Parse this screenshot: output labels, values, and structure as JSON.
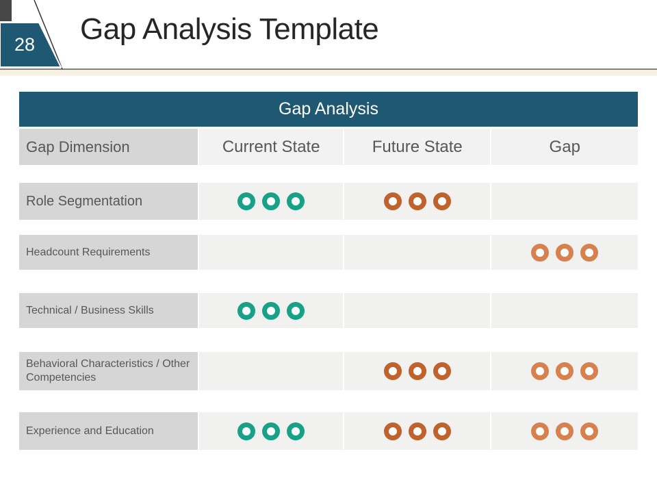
{
  "slide": {
    "page_number": "28",
    "title": "Gap Analysis Template"
  },
  "table": {
    "title": "Gap Analysis",
    "columns": [
      "Gap Dimension",
      "Current State",
      "Future State",
      "Gap"
    ],
    "rows": [
      {
        "label": "Role Segmentation",
        "current": {
          "count": 3,
          "color": "teal"
        },
        "future": {
          "count": 3,
          "color": "orange_dark"
        },
        "gap": {
          "count": 0
        }
      },
      {
        "label": "Headcount Requirements",
        "current": {
          "count": 0
        },
        "future": {
          "count": 0
        },
        "gap": {
          "count": 3,
          "color": "orange_light"
        }
      },
      {
        "label": "Technical / Business Skills",
        "current": {
          "count": 3,
          "color": "teal"
        },
        "future": {
          "count": 0
        },
        "gap": {
          "count": 0
        }
      },
      {
        "label": "Behavioral Characteristics / Other Competencies",
        "current": {
          "count": 0
        },
        "future": {
          "count": 3,
          "color": "orange_dark"
        },
        "gap": {
          "count": 3,
          "color": "orange_light"
        }
      },
      {
        "label": "Experience and Education",
        "current": {
          "count": 3,
          "color": "teal"
        },
        "future": {
          "count": 3,
          "color": "orange_dark"
        },
        "gap": {
          "count": 3,
          "color": "orange_light"
        }
      }
    ]
  },
  "colors": {
    "teal": "#17A287",
    "orange_dark": "#C0622B",
    "orange_light": "#D6814E",
    "header_blue": "#1E5872",
    "label_cell_gray": "#D6D6D6",
    "data_cell_gray": "#F1F1F0",
    "title_text": "#262626",
    "table_text_gray": "#575757",
    "corner_square_gray": "#474747"
  }
}
